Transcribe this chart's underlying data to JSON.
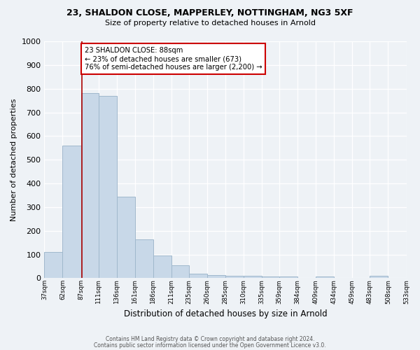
{
  "title1": "23, SHALDON CLOSE, MAPPERLEY, NOTTINGHAM, NG3 5XF",
  "title2": "Size of property relative to detached houses in Arnold",
  "xlabel": "Distribution of detached houses by size in Arnold",
  "ylabel": "Number of detached properties",
  "bar_color": "#c8d8e8",
  "bar_edgecolor": "#a0b8cc",
  "vline_x": 88,
  "vline_color": "#aa0000",
  "annotation_text": "23 SHALDON CLOSE: 88sqm\n← 23% of detached houses are smaller (673)\n76% of semi-detached houses are larger (2,200) →",
  "annotation_box_edgecolor": "#cc0000",
  "annotation_box_facecolor": "#ffffff",
  "bins": [
    37,
    62,
    87,
    111,
    136,
    161,
    186,
    211,
    235,
    260,
    285,
    310,
    335,
    359,
    384,
    409,
    434,
    459,
    483,
    508,
    533
  ],
  "counts": [
    110,
    560,
    780,
    770,
    345,
    163,
    97,
    55,
    20,
    13,
    10,
    9,
    8,
    6,
    0,
    8,
    0,
    0,
    10,
    0
  ],
  "ylim": [
    0,
    1000
  ],
  "yticks": [
    0,
    100,
    200,
    300,
    400,
    500,
    600,
    700,
    800,
    900,
    1000
  ],
  "footer1": "Contains HM Land Registry data © Crown copyright and database right 2024.",
  "footer2": "Contains public sector information licensed under the Open Government Licence v3.0.",
  "bg_color": "#eef2f6"
}
